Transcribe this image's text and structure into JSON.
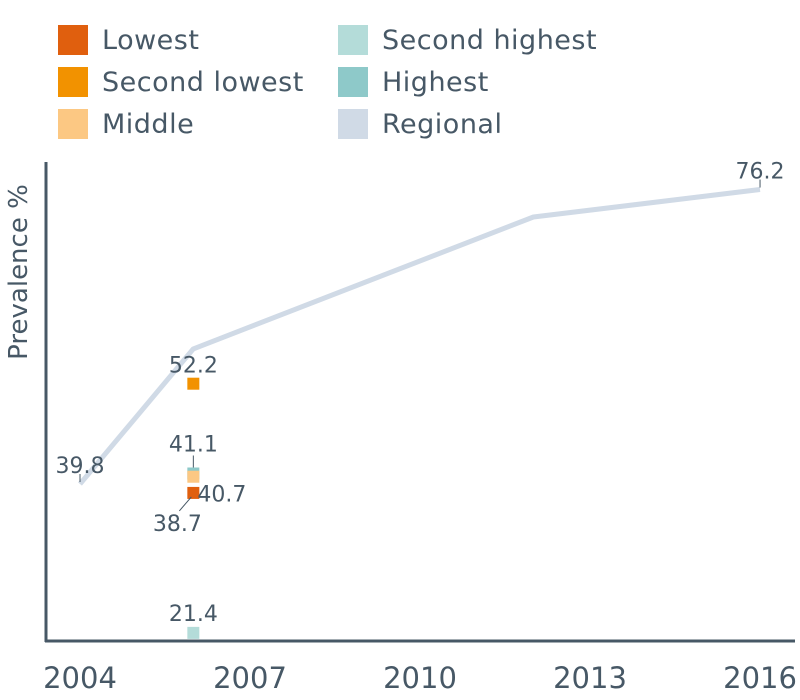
{
  "chart_data": {
    "type": "line",
    "ylabel": "Prevalence %",
    "xlabel": "",
    "x_ticks": [
      "2004",
      "2007",
      "2010",
      "2013",
      "2016"
    ],
    "xlim": [
      2004,
      2017
    ],
    "ylim": [
      18,
      88
    ],
    "legend_position": "top",
    "series": [
      {
        "name": "Lowest",
        "color": "#e05f0e",
        "marker": "square",
        "points": [
          {
            "x": 2006,
            "y": 38.7,
            "label": "38.7"
          }
        ]
      },
      {
        "name": "Second lowest",
        "color": "#f29200",
        "marker": "square",
        "points": [
          {
            "x": 2006,
            "y": 52.2,
            "label": "52.2"
          }
        ]
      },
      {
        "name": "Middle",
        "color": "#fcc883",
        "marker": "square",
        "points": [
          {
            "x": 2006,
            "y": 40.7,
            "label": "40.7"
          }
        ]
      },
      {
        "name": "Second highest",
        "color": "#b4dcd9",
        "marker": "square",
        "points": [
          {
            "x": 2006,
            "y": 21.4,
            "label": "21.4"
          }
        ]
      },
      {
        "name": "Highest",
        "color": "#8ec9c9",
        "marker": "square",
        "points": [
          {
            "x": 2006,
            "y": 41.1,
            "label": "41.1"
          }
        ]
      },
      {
        "name": "Regional",
        "color": "#d0dae6",
        "marker": "line",
        "points": [
          {
            "x": 2004,
            "y": 39.8,
            "label": "39.8"
          },
          {
            "x": 2006,
            "y": 56.5,
            "label": ""
          },
          {
            "x": 2012,
            "y": 72.8,
            "label": ""
          },
          {
            "x": 2016,
            "y": 76.2,
            "label": "76.2"
          }
        ]
      }
    ]
  }
}
